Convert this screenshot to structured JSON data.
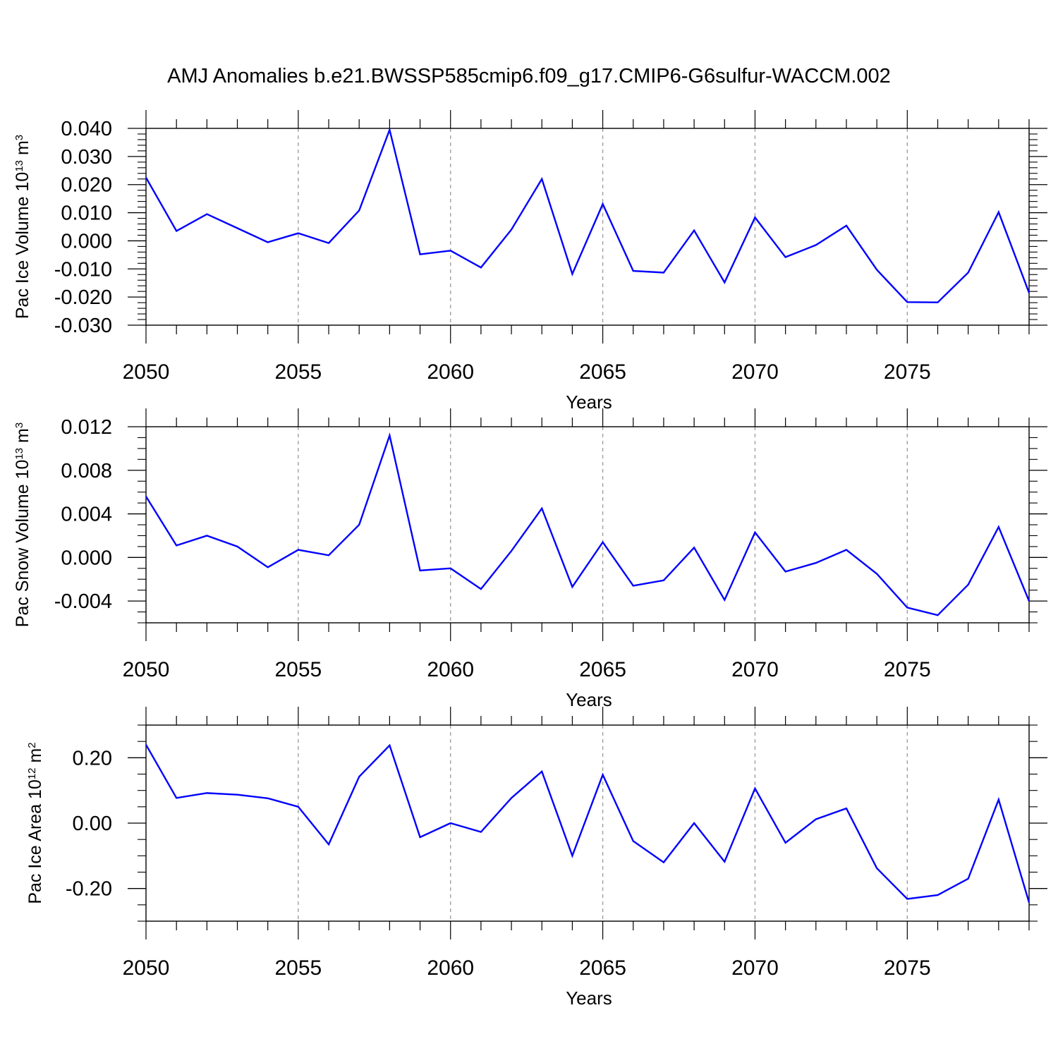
{
  "title": "AMJ Anomalies b.e21.BWSSP585cmip6.f09_g17.CMIP6-G6sulfur-WACCM.002",
  "colors": {
    "line": "#0000ff",
    "axis": "#000000",
    "grid": "#999999"
  },
  "chart_data": [
    {
      "type": "line",
      "title": "",
      "xlabel": "Years",
      "ylabel": {
        "text": "Pac Ice Volume 10",
        "exponent": "13",
        "unit": " m",
        "unit_exponent": "3"
      },
      "xlim": [
        2050,
        2079
      ],
      "ylim": [
        -0.03,
        0.04
      ],
      "yticks": [
        -0.03,
        -0.02,
        -0.01,
        0.0,
        0.01,
        0.02,
        0.03,
        0.04
      ],
      "ytick_labels": [
        "-0.030",
        "-0.020",
        "-0.010",
        "0.000",
        "0.010",
        "0.020",
        "0.030",
        "0.040"
      ],
      "yminor_step": 0.002,
      "xticks": [
        2050,
        2055,
        2060,
        2065,
        2070,
        2075
      ],
      "xtick_labels": [
        "2050",
        "2055",
        "2060",
        "2065",
        "2070",
        "2075"
      ],
      "vertical_grid": [
        2055,
        2060,
        2065,
        2070,
        2075
      ],
      "x": [
        2050,
        2051,
        2052,
        2053,
        2054,
        2055,
        2056,
        2057,
        2058,
        2059,
        2060,
        2061,
        2062,
        2063,
        2064,
        2065,
        2066,
        2067,
        2068,
        2069,
        2070,
        2071,
        2072,
        2073,
        2074,
        2075,
        2076,
        2077,
        2078,
        2079
      ],
      "series": [
        {
          "values": [
            0.0225,
            0.0035,
            0.0095,
            0.0045,
            -0.0005,
            0.0027,
            -0.0008,
            0.0108,
            0.0395,
            -0.0048,
            -0.0035,
            -0.0095,
            0.004,
            0.022,
            -0.0118,
            0.0131,
            -0.0107,
            -0.0113,
            0.0037,
            -0.0148,
            0.0083,
            -0.0058,
            -0.0015,
            0.0054,
            -0.0103,
            -0.0218,
            -0.0219,
            -0.0113,
            0.0102,
            -0.0185
          ]
        }
      ]
    },
    {
      "type": "line",
      "title": "",
      "xlabel": "Years",
      "ylabel": {
        "text": "Pac Snow Volume 10",
        "exponent": "13",
        "unit": " m",
        "unit_exponent": "3"
      },
      "xlim": [
        2050,
        2079
      ],
      "ylim": [
        -0.006,
        0.012
      ],
      "yticks": [
        -0.004,
        0.0,
        0.004,
        0.008,
        0.012
      ],
      "ytick_labels": [
        "-0.004",
        "0.000",
        "0.004",
        "0.008",
        "0.012"
      ],
      "yminor_step": 0.001,
      "xticks": [
        2050,
        2055,
        2060,
        2065,
        2070,
        2075
      ],
      "xtick_labels": [
        "2050",
        "2055",
        "2060",
        "2065",
        "2070",
        "2075"
      ],
      "vertical_grid": [
        2055,
        2060,
        2065,
        2070,
        2075
      ],
      "x": [
        2050,
        2051,
        2052,
        2053,
        2054,
        2055,
        2056,
        2057,
        2058,
        2059,
        2060,
        2061,
        2062,
        2063,
        2064,
        2065,
        2066,
        2067,
        2068,
        2069,
        2070,
        2071,
        2072,
        2073,
        2074,
        2075,
        2076,
        2077,
        2078,
        2079
      ],
      "series": [
        {
          "values": [
            0.0056,
            0.0011,
            0.002,
            0.001,
            -0.0009,
            0.0007,
            0.0002,
            0.003,
            0.0112,
            -0.0012,
            -0.001,
            -0.0029,
            0.0006,
            0.0045,
            -0.0027,
            0.0014,
            -0.0026,
            -0.0021,
            0.0009,
            -0.0039,
            0.0023,
            -0.0013,
            -0.0005,
            0.0007,
            -0.0015,
            -0.0046,
            -0.0053,
            -0.0025,
            0.0028,
            -0.004
          ]
        }
      ]
    },
    {
      "type": "line",
      "title": "",
      "xlabel": "Years",
      "ylabel": {
        "text": "Pac Ice Area 10",
        "exponent": "12",
        "unit": " m",
        "unit_exponent": "2"
      },
      "xlim": [
        2050,
        2079
      ],
      "ylim": [
        -0.3,
        0.3
      ],
      "yticks": [
        -0.2,
        0.0,
        0.2
      ],
      "ytick_labels": [
        "-0.20",
        "0.00",
        "0.20"
      ],
      "yminor_step": 0.05,
      "xticks": [
        2050,
        2055,
        2060,
        2065,
        2070,
        2075
      ],
      "xtick_labels": [
        "2050",
        "2055",
        "2060",
        "2065",
        "2070",
        "2075"
      ],
      "vertical_grid": [
        2055,
        2060,
        2065,
        2070,
        2075
      ],
      "x": [
        2050,
        2051,
        2052,
        2053,
        2054,
        2055,
        2056,
        2057,
        2058,
        2059,
        2060,
        2061,
        2062,
        2063,
        2064,
        2065,
        2066,
        2067,
        2068,
        2069,
        2070,
        2071,
        2072,
        2073,
        2074,
        2075,
        2076,
        2077,
        2078,
        2079
      ],
      "series": [
        {
          "values": [
            0.24,
            0.077,
            0.092,
            0.087,
            0.076,
            0.05,
            -0.065,
            0.142,
            0.238,
            -0.043,
            0.0,
            -0.027,
            0.077,
            0.158,
            -0.1,
            0.148,
            -0.055,
            -0.12,
            0.0,
            -0.118,
            0.106,
            -0.06,
            0.012,
            0.045,
            -0.138,
            -0.232,
            -0.22,
            -0.17,
            0.072,
            -0.243
          ]
        }
      ]
    }
  ]
}
